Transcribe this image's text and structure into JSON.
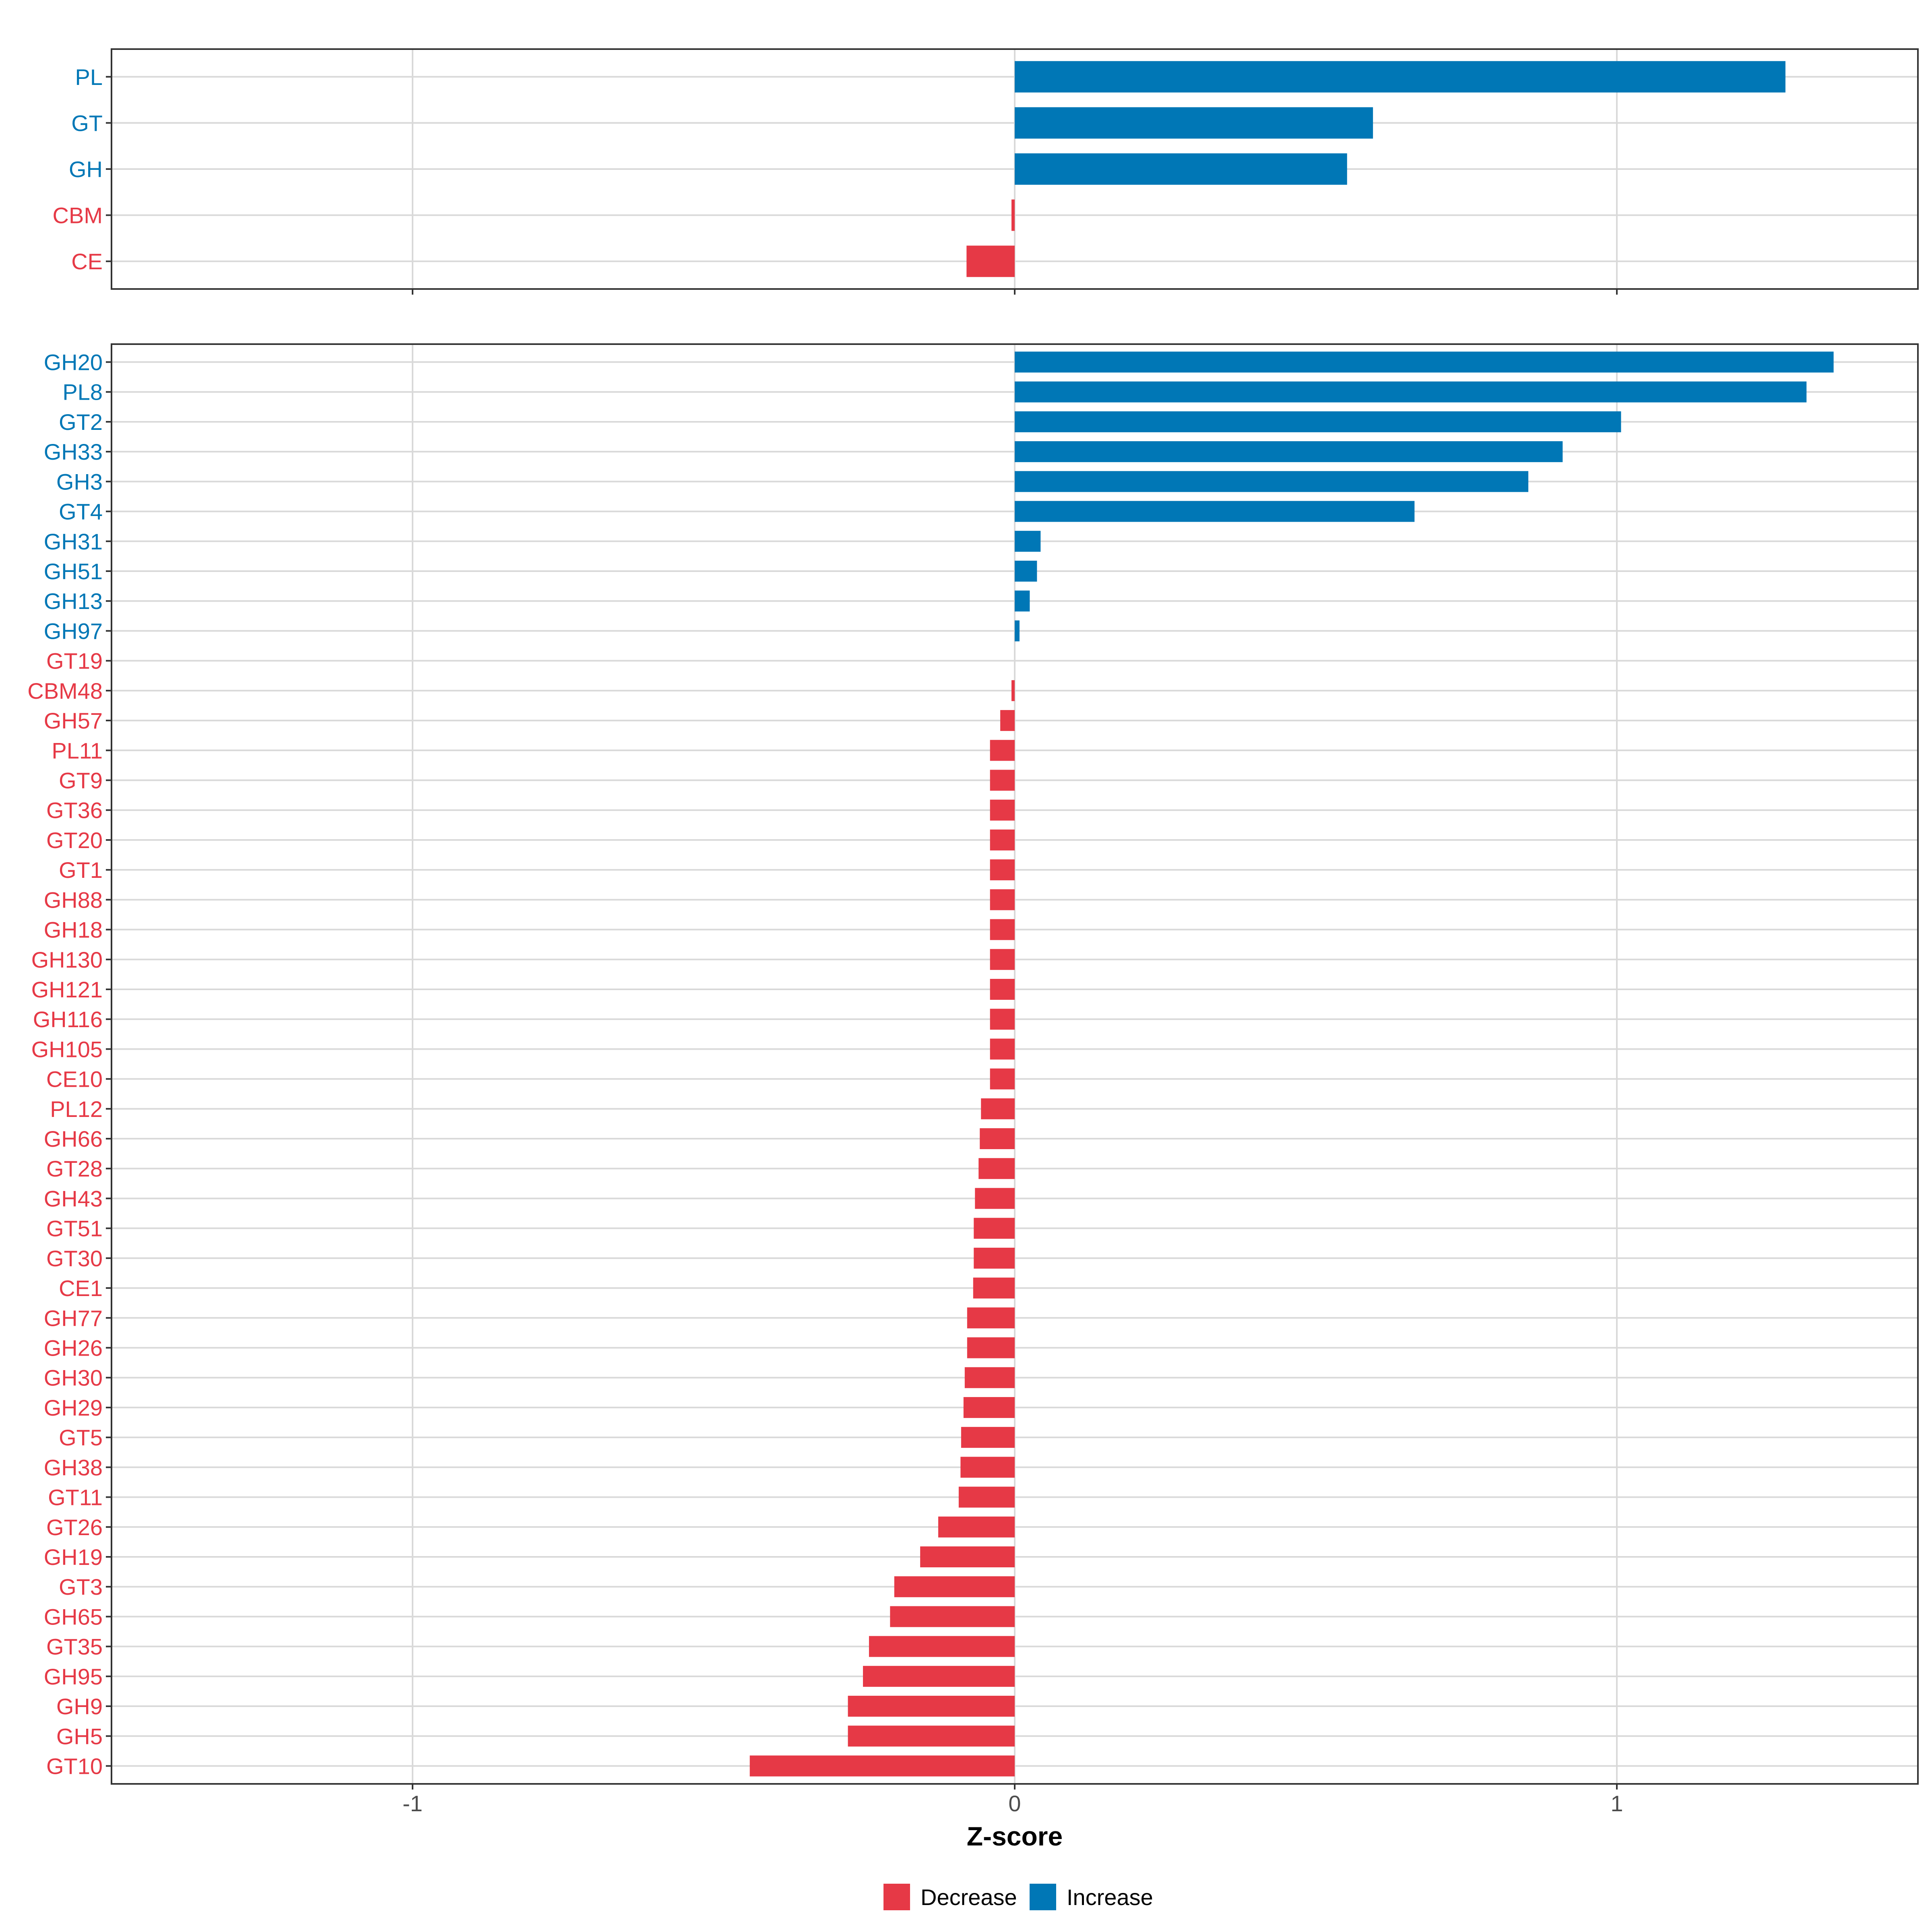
{
  "chart_data": [
    {
      "type": "bar",
      "orientation": "horizontal",
      "panel": "top",
      "categories": [
        "PL",
        "GT",
        "GH",
        "CBM",
        "CE"
      ],
      "values": [
        1.28,
        0.595,
        0.552,
        -0.004,
        -0.08
      ],
      "xlim": [
        -1.5,
        1.5
      ],
      "grid": true
    },
    {
      "type": "bar",
      "orientation": "horizontal",
      "panel": "bottom",
      "categories": [
        "GH20",
        "PL8",
        "GT2",
        "GH33",
        "GH3",
        "GT4",
        "GH31",
        "GH51",
        "GH13",
        "GH97",
        "GT19",
        "CBM48",
        "GH57",
        "PL11",
        "GT9",
        "GT36",
        "GT20",
        "GT1",
        "GH88",
        "GH18",
        "GH130",
        "GH121",
        "GH116",
        "GH105",
        "CE10",
        "PL12",
        "GH66",
        "GT28",
        "GH43",
        "GT51",
        "GT30",
        "CE1",
        "GH77",
        "GH26",
        "GH30",
        "GH29",
        "GT5",
        "GH38",
        "GT11",
        "GT26",
        "GH19",
        "GT3",
        "GH65",
        "GT35",
        "GH95",
        "GH9",
        "GH5",
        "GT10"
      ],
      "values": [
        1.36,
        1.315,
        1.007,
        0.91,
        0.853,
        0.664,
        0.043,
        0.037,
        0.025,
        0.008,
        0.0,
        -0.005,
        -0.024,
        -0.041,
        -0.041,
        -0.041,
        -0.041,
        -0.041,
        -0.041,
        -0.041,
        -0.041,
        -0.041,
        -0.041,
        -0.041,
        -0.041,
        -0.056,
        -0.058,
        -0.06,
        -0.066,
        -0.068,
        -0.068,
        -0.069,
        -0.079,
        -0.079,
        -0.083,
        -0.085,
        -0.089,
        -0.09,
        -0.093,
        -0.127,
        -0.157,
        -0.2,
        -0.207,
        -0.242,
        -0.252,
        -0.277,
        -0.277,
        -0.44
      ],
      "xlim": [
        -1.5,
        1.5
      ],
      "grid": true
    }
  ],
  "x_axis": {
    "ticks": [
      -1,
      0,
      1
    ],
    "tick_labels": [
      "-1",
      "0",
      "1"
    ],
    "label": "Z-score"
  },
  "legend": {
    "placement": "bottom",
    "items": [
      {
        "label": "Decrease",
        "color": "#e63946"
      },
      {
        "label": "Increase",
        "color": "#0077b6"
      }
    ]
  },
  "colors": {
    "decrease": "#e63946",
    "increase": "#0077b6",
    "grid": "#d9d9d9",
    "panel_border": "#333333"
  }
}
